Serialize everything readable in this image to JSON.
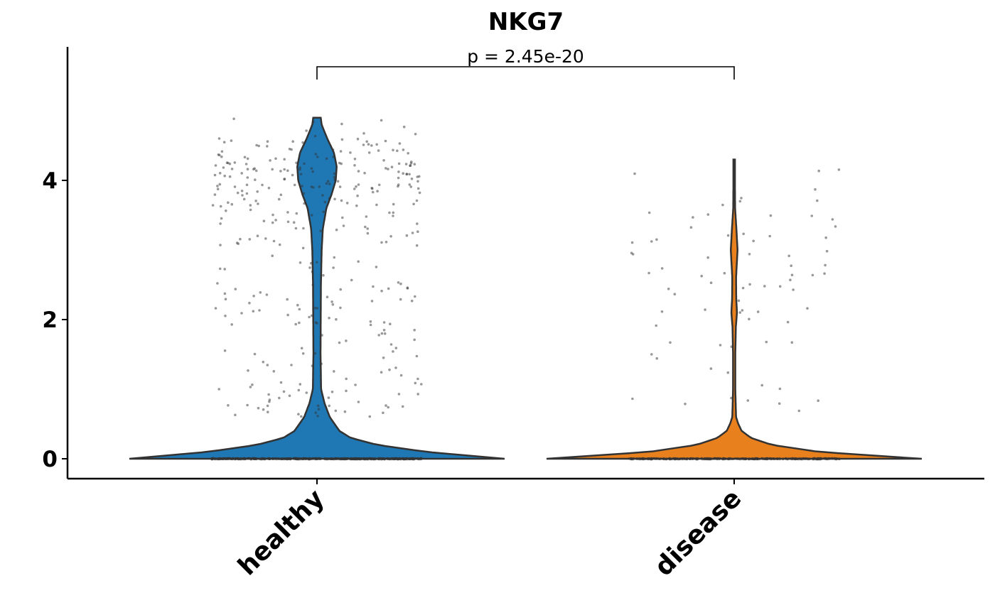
{
  "chart_data": {
    "type": "violin",
    "title": "NKG7",
    "xlabel": "",
    "ylabel": "",
    "categories": [
      "healthy",
      "disease"
    ],
    "ylim": [
      -0.28,
      5.9
    ],
    "yticks": [
      0,
      2,
      4
    ],
    "ytick_labels": [
      "0",
      "2",
      "4"
    ],
    "grid": false,
    "series": [
      {
        "category": "healthy",
        "color": "#1f77b4",
        "max": 4.9,
        "density_profile": [
          [
            0,
            1.0
          ],
          [
            0.1,
            0.58
          ],
          [
            0.2,
            0.32
          ],
          [
            0.3,
            0.18
          ],
          [
            0.4,
            0.12
          ],
          [
            0.6,
            0.068
          ],
          [
            0.8,
            0.04
          ],
          [
            1.0,
            0.022
          ],
          [
            1.5,
            0.019
          ],
          [
            2.0,
            0.02
          ],
          [
            2.5,
            0.021
          ],
          [
            3.0,
            0.025
          ],
          [
            3.3,
            0.031
          ],
          [
            3.6,
            0.05
          ],
          [
            3.8,
            0.078
          ],
          [
            4.0,
            0.1
          ],
          [
            4.2,
            0.105
          ],
          [
            4.4,
            0.09
          ],
          [
            4.6,
            0.055
          ],
          [
            4.8,
            0.025
          ],
          [
            4.9,
            0.02
          ]
        ],
        "zero_fraction": 0.6
      },
      {
        "category": "disease",
        "color": "#e8801e",
        "max": 4.3,
        "density_profile": [
          [
            0,
            1.0
          ],
          [
            0.1,
            0.45
          ],
          [
            0.2,
            0.2
          ],
          [
            0.3,
            0.09
          ],
          [
            0.4,
            0.04
          ],
          [
            0.5,
            0.022
          ],
          [
            0.6,
            0.01
          ],
          [
            1.0,
            0.006
          ],
          [
            1.5,
            0.006
          ],
          [
            1.9,
            0.009
          ],
          [
            2.1,
            0.015
          ],
          [
            2.3,
            0.011
          ],
          [
            2.6,
            0.01
          ],
          [
            3.0,
            0.018
          ],
          [
            3.3,
            0.012
          ],
          [
            3.6,
            0.005
          ],
          [
            4.0,
            0.004
          ],
          [
            4.3,
            0.004
          ]
        ],
        "zero_fraction": 0.82
      }
    ],
    "annotation": {
      "text": "p = 2.45e-20",
      "between": [
        "healthy",
        "disease"
      ],
      "y": 5.6
    }
  }
}
